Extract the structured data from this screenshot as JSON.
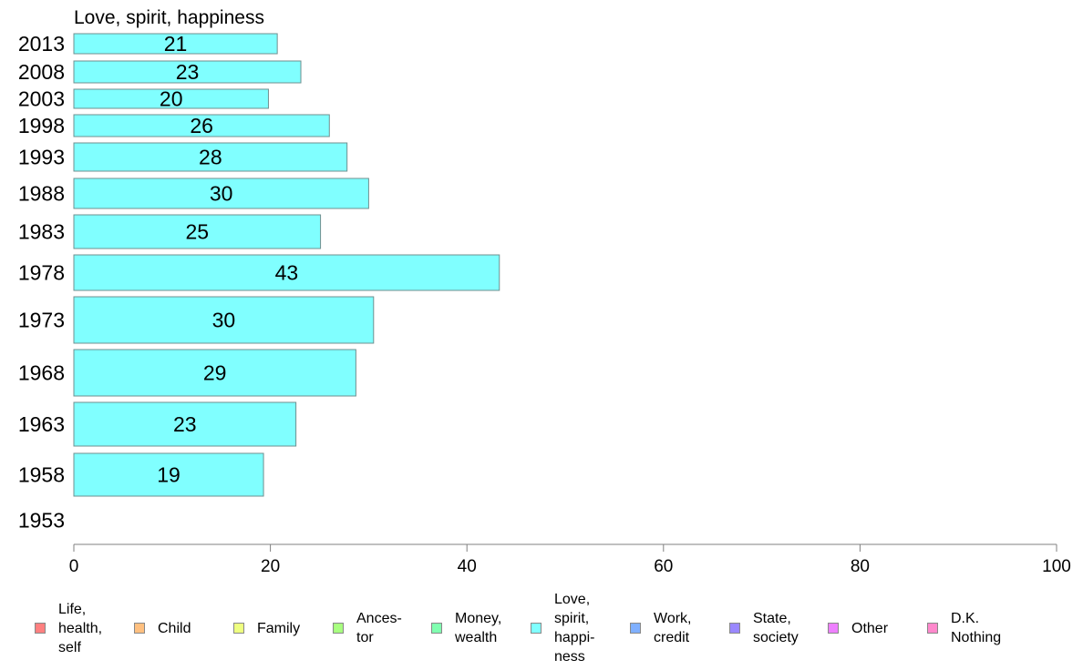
{
  "chart_data": {
    "type": "bar",
    "orientation": "horizontal",
    "title": "Love, spirit, happiness",
    "xlabel": "",
    "ylabel": "",
    "xlim": [
      0,
      100
    ],
    "x_ticks": [
      0,
      20,
      40,
      60,
      80,
      100
    ],
    "grid": false,
    "bar_color": "#80ffff",
    "categories": [
      "2013",
      "2008",
      "2003",
      "1998",
      "1993",
      "1988",
      "1983",
      "1978",
      "1973",
      "1968",
      "1963",
      "1958",
      "1953"
    ],
    "series": [
      {
        "values": [
          20.7,
          23.1,
          19.8,
          26.0,
          27.8,
          30.0,
          25.1,
          43.3,
          30.5,
          28.7,
          22.6,
          19.3,
          null
        ],
        "labels": [
          "21",
          "23",
          "20",
          "26",
          "28",
          "30",
          "25",
          "43",
          "30",
          "29",
          "23",
          "19",
          ""
        ]
      }
    ],
    "legend": {
      "placement": "bottom",
      "items": [
        {
          "label": "Life,\nhealth,\nself",
          "color": "#ff8080"
        },
        {
          "label": "Child",
          "color": "#ffc080"
        },
        {
          "label": "Family",
          "color": "#eeff80"
        },
        {
          "label": "Ances-\ntor",
          "color": "#a8ff80"
        },
        {
          "label": "Money,\nwealth",
          "color": "#80ffb0"
        },
        {
          "label": "Love,\nspirit,\nhappi-\nness",
          "color": "#80ffff"
        },
        {
          "label": "Work,\ncredit",
          "color": "#80b0ff"
        },
        {
          "label": "State,\nsociety",
          "color": "#9a88ff"
        },
        {
          "label": "Other",
          "color": "#ee80ff"
        },
        {
          "label": "D.K.\nNothing",
          "color": "#ff88cc"
        }
      ]
    }
  }
}
